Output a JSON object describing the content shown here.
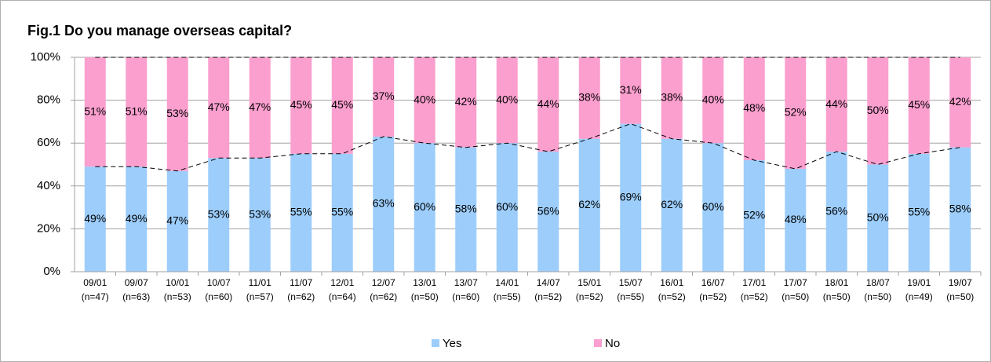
{
  "chart_data": {
    "type": "stacked_bar_100",
    "title": "Fig.1 Do you manage overseas capital?",
    "categories": [
      "09/01",
      "09/07",
      "10/01",
      "10/07",
      "11/01",
      "11/07",
      "12/01",
      "12/07",
      "13/01",
      "13/07",
      "14/01",
      "14/07",
      "15/01",
      "15/07",
      "16/01",
      "16/07",
      "17/01",
      "17/07",
      "18/01",
      "18/07",
      "19/01",
      "19/07"
    ],
    "category_sublabels": [
      "(n=47)",
      "(n=63)",
      "(n=53)",
      "(n=60)",
      "(n=57)",
      "(n=62)",
      "(n=64)",
      "(n=62)",
      "(n=50)",
      "(n=60)",
      "(n=55)",
      "(n=52)",
      "(n=52)",
      "(n=55)",
      "(n=52)",
      "(n=52)",
      "(n=52)",
      "(n=50)",
      "(n=50)",
      "(n=50)",
      "(n=49)",
      "(n=50)"
    ],
    "series": [
      {
        "name": "Yes",
        "color": "#9ccdfb",
        "values": [
          49,
          49,
          47,
          53,
          53,
          55,
          55,
          63,
          60,
          58,
          60,
          56,
          62,
          69,
          62,
          60,
          52,
          48,
          56,
          50,
          55,
          58
        ],
        "value_labels": [
          "49%",
          "49%",
          "47%",
          "53%",
          "53%",
          "55%",
          "55%",
          "63%",
          "60%",
          "58%",
          "60%",
          "56%",
          "62%",
          "69%",
          "62%",
          "60%",
          "52%",
          "48%",
          "56%",
          "50%",
          "55%",
          "58%"
        ]
      },
      {
        "name": "No",
        "color": "#fb9fcf",
        "values": [
          51,
          51,
          53,
          47,
          47,
          45,
          45,
          37,
          40,
          42,
          40,
          44,
          38,
          31,
          38,
          40,
          48,
          52,
          44,
          50,
          45,
          42
        ],
        "value_labels": [
          "51%",
          "51%",
          "53%",
          "47%",
          "47%",
          "45%",
          "45%",
          "37%",
          "40%",
          "42%",
          "40%",
          "44%",
          "38%",
          "31%",
          "38%",
          "40%",
          "48%",
          "52%",
          "44%",
          "50%",
          "45%",
          "42%"
        ]
      }
    ],
    "ylim": [
      0,
      100
    ],
    "yticks": [
      {
        "value": 0,
        "label": "0%"
      },
      {
        "value": 20,
        "label": "20%"
      },
      {
        "value": 40,
        "label": "40%"
      },
      {
        "value": 60,
        "label": "60%"
      },
      {
        "value": 80,
        "label": "80%"
      },
      {
        "value": 100,
        "label": "100%"
      }
    ],
    "grid": true,
    "legend": "bottom"
  }
}
